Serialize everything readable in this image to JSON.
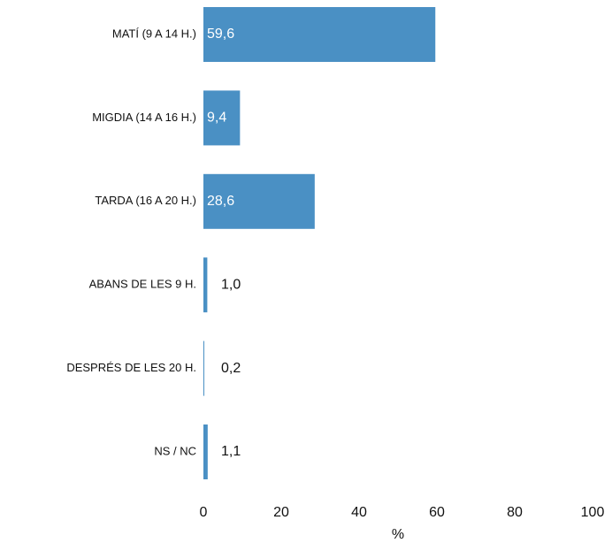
{
  "chart_data": {
    "type": "barh",
    "categories": [
      "MATÍ (9 A 14 H.)",
      "MIGDIA (14 A 16 H.)",
      "TARDA (16 A 20 H.)",
      "ABANS DE LES 9 H.",
      "DESPRÉS DE LES 20 H.",
      "NS / NC"
    ],
    "values": [
      59.6,
      9.4,
      28.6,
      1.0,
      0.2,
      1.1
    ],
    "value_labels": [
      "59,6",
      "9,4",
      "28,6",
      "1,0",
      "0,2",
      "1,1"
    ],
    "color": "#4a90c4",
    "xlim": [
      0,
      100
    ],
    "xticks": [
      0,
      20,
      40,
      60,
      80,
      100
    ],
    "xlabel": "%"
  }
}
